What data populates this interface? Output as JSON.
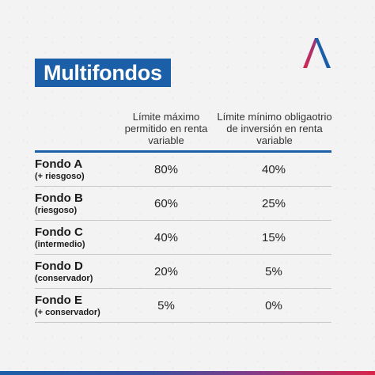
{
  "title": "Multifondos",
  "columns": {
    "max_label": "Límite máximo permitido en renta variable",
    "min_label": "Límite mínimo obligaotrio de inversión en renta variable"
  },
  "rows": [
    {
      "name": "Fondo A",
      "note": "(+ riesgoso)",
      "max": "80%",
      "min": "40%"
    },
    {
      "name": "Fondo B",
      "note": "(riesgoso)",
      "max": "60%",
      "min": "25%"
    },
    {
      "name": "Fondo C",
      "note": "(intermedio)",
      "max": "40%",
      "min": "15%"
    },
    {
      "name": "Fondo D",
      "note": "(conservador)",
      "max": "20%",
      "min": "5%"
    },
    {
      "name": "Fondo E",
      "note": "(+ conservador)",
      "max": "5%",
      "min": "0%"
    }
  ],
  "colors": {
    "brand_blue": "#1b5fa8",
    "logo_red": "#d8254a",
    "logo_blue": "#1b5fa8"
  },
  "icons": {
    "logo": "caret-logo-icon"
  }
}
